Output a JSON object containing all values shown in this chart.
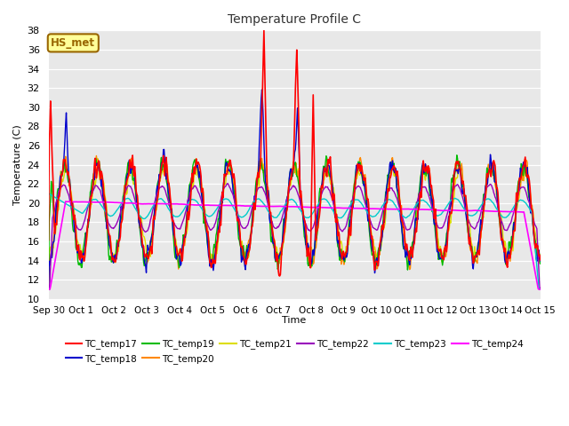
{
  "title": "Temperature Profile C",
  "xlabel": "Time",
  "ylabel": "Temperature (C)",
  "ylim": [
    10,
    38
  ],
  "yticks": [
    10,
    12,
    14,
    16,
    18,
    20,
    22,
    24,
    26,
    28,
    30,
    32,
    34,
    36,
    38
  ],
  "bg_color": "#e8e8e8",
  "annotation_text": "HS_met",
  "annotation_bg": "#ffff99",
  "annotation_border": "#996600",
  "series_colors": {
    "TC_temp17": "#ff0000",
    "TC_temp18": "#0000cc",
    "TC_temp19": "#00bb00",
    "TC_temp20": "#ff8800",
    "TC_temp21": "#dddd00",
    "TC_temp22": "#9900bb",
    "TC_temp23": "#00cccc",
    "TC_temp24": "#ff00ff"
  },
  "num_points": 720,
  "x_start": 0,
  "x_end": 15.0,
  "x_tick_labels": [
    "Sep 30",
    "Oct 1",
    "Oct 2",
    "Oct 3",
    "Oct 4",
    "Oct 5",
    "Oct 6",
    "Oct 7",
    "Oct 8",
    "Oct 9",
    "Oct 10",
    "Oct 11",
    "Oct 12",
    "Oct 13",
    "Oct 14",
    "Oct 15"
  ],
  "x_tick_positions": [
    0,
    1,
    2,
    3,
    4,
    5,
    6,
    7,
    8,
    9,
    10,
    11,
    12,
    13,
    14,
    15
  ],
  "figsize": [
    6.4,
    4.8
  ],
  "dpi": 100
}
